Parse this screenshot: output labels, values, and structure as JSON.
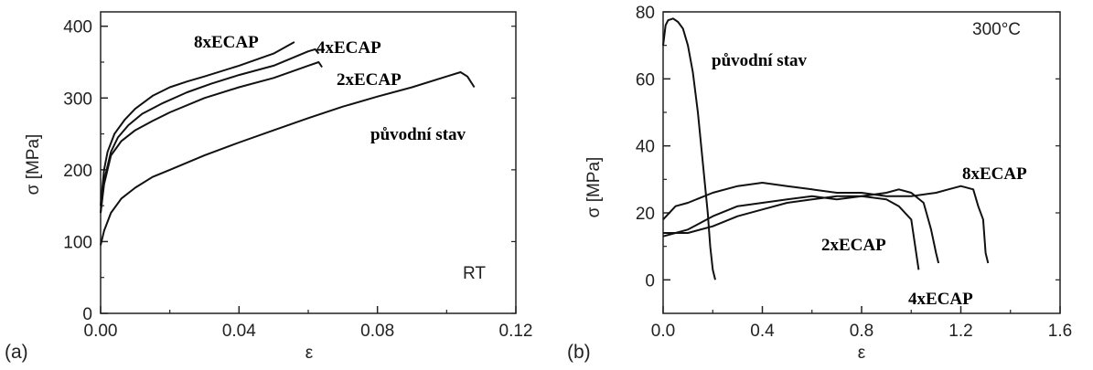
{
  "chart_data": [
    {
      "type": "line",
      "panel_label": "(a)",
      "condition_label": "RT",
      "xlabel": "ε",
      "ylabel": "σ [MPa]",
      "xlim": [
        0,
        0.12
      ],
      "ylim": [
        0,
        420
      ],
      "xticks": [
        0,
        0.04,
        0.08,
        0.12
      ],
      "xtick_labels": [
        "0.00",
        "0.04",
        "0.08",
        "0.12"
      ],
      "yticks": [
        0,
        100,
        200,
        300,
        400
      ],
      "ytick_labels": [
        "0",
        "100",
        "200",
        "300",
        "400"
      ],
      "series": [
        {
          "name": "8xECAP",
          "x": [
            0,
            0.001,
            0.002,
            0.004,
            0.007,
            0.01,
            0.015,
            0.02,
            0.025,
            0.03,
            0.04,
            0.05,
            0.056
          ],
          "y": [
            150,
            200,
            225,
            250,
            270,
            285,
            303,
            315,
            323,
            330,
            345,
            362,
            378
          ]
        },
        {
          "name": "4xECAP",
          "x": [
            0,
            0.001,
            0.003,
            0.005,
            0.008,
            0.012,
            0.018,
            0.025,
            0.032,
            0.04,
            0.05,
            0.06,
            0.062,
            0.063
          ],
          "y": [
            140,
            185,
            225,
            245,
            262,
            278,
            293,
            308,
            320,
            332,
            345,
            365,
            368,
            362
          ]
        },
        {
          "name": "2xECAP",
          "x": [
            0,
            0.001,
            0.003,
            0.006,
            0.01,
            0.015,
            0.02,
            0.03,
            0.04,
            0.05,
            0.06,
            0.063,
            0.064
          ],
          "y": [
            140,
            180,
            220,
            240,
            255,
            268,
            280,
            300,
            315,
            328,
            345,
            350,
            343
          ]
        },
        {
          "name": "původní stav",
          "x": [
            0,
            0.001,
            0.003,
            0.006,
            0.01,
            0.015,
            0.02,
            0.03,
            0.04,
            0.05,
            0.06,
            0.07,
            0.08,
            0.09,
            0.1,
            0.104,
            0.106,
            0.108
          ],
          "y": [
            95,
            115,
            140,
            160,
            175,
            190,
            200,
            220,
            238,
            255,
            272,
            288,
            302,
            315,
            330,
            336,
            330,
            315
          ]
        }
      ]
    },
    {
      "type": "line",
      "panel_label": "(b)",
      "condition_label": "300°C",
      "xlabel": "ε",
      "ylabel": "σ [MPa]",
      "xlim": [
        0,
        1.6
      ],
      "ylim": [
        -10,
        80
      ],
      "xticks": [
        0,
        0.4,
        0.8,
        1.2,
        1.6
      ],
      "xtick_labels": [
        "0.0",
        "0.4",
        "0.8",
        "1.2",
        "1.6"
      ],
      "yticks": [
        0,
        20,
        40,
        60,
        80
      ],
      "ytick_labels": [
        "0",
        "20",
        "40",
        "60",
        "80"
      ],
      "series": [
        {
          "name": "původní stav",
          "x": [
            0,
            0.01,
            0.02,
            0.04,
            0.06,
            0.08,
            0.1,
            0.12,
            0.14,
            0.16,
            0.18,
            0.19,
            0.2,
            0.21
          ],
          "y": [
            70,
            76,
            77.5,
            78,
            77,
            75,
            70,
            62,
            50,
            35,
            20,
            10,
            3,
            0
          ]
        },
        {
          "name": "8xECAP",
          "x": [
            0,
            0.05,
            0.1,
            0.2,
            0.3,
            0.4,
            0.5,
            0.6,
            0.7,
            0.8,
            0.9,
            1.0,
            1.1,
            1.15,
            1.2,
            1.25,
            1.27,
            1.29,
            1.3,
            1.31
          ],
          "y": [
            18,
            22,
            23,
            26,
            28,
            29,
            28,
            27,
            26,
            26,
            25,
            25,
            26,
            27,
            28,
            27,
            22,
            18,
            8,
            5
          ]
        },
        {
          "name": "4xECAP",
          "x": [
            0,
            0.05,
            0.1,
            0.2,
            0.3,
            0.4,
            0.5,
            0.6,
            0.7,
            0.8,
            0.9,
            0.95,
            1.0,
            1.05,
            1.08,
            1.1,
            1.11
          ],
          "y": [
            13,
            14,
            15,
            19,
            22,
            23,
            24,
            25,
            24,
            25,
            26,
            27,
            26,
            23,
            15,
            8,
            5
          ]
        },
        {
          "name": "2xECAP",
          "x": [
            0,
            0.05,
            0.1,
            0.2,
            0.3,
            0.4,
            0.5,
            0.6,
            0.7,
            0.8,
            0.9,
            0.95,
            1.0,
            1.02,
            1.03
          ],
          "y": [
            14,
            14,
            14,
            16,
            19,
            21,
            23,
            24,
            25,
            25,
            24,
            22,
            18,
            8,
            3
          ]
        }
      ]
    }
  ]
}
